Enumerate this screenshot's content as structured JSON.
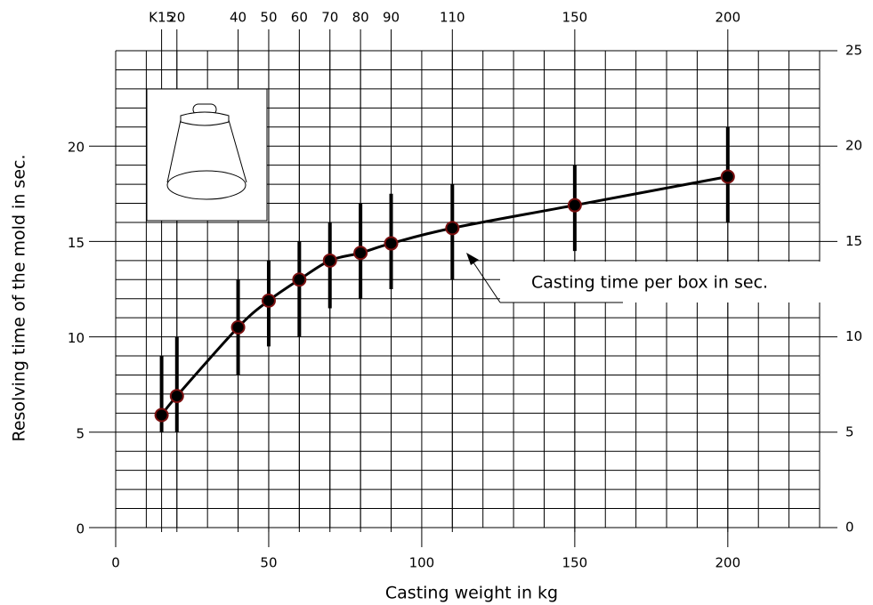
{
  "chart_data": {
    "type": "errorline",
    "xlabel": "Casting weight in kg",
    "ylabel": "Resolving time of the mold in sec.",
    "annotation": "Casting time per box in sec.",
    "xlim": [
      0,
      230
    ],
    "ylim": [
      0,
      25
    ],
    "y2lim": [
      0,
      25
    ],
    "xticks": [
      0,
      50,
      100,
      150,
      200
    ],
    "yticks": [
      0,
      5,
      10,
      15,
      20
    ],
    "y2ticks": [
      0,
      5,
      10,
      15,
      20,
      25
    ],
    "top_ticks": [
      {
        "value": 15,
        "label": "K15"
      },
      20,
      40,
      50,
      60,
      70,
      80,
      90,
      110,
      150,
      200
    ],
    "grid": true,
    "xgrid_step": 10,
    "ygrid_step": 1,
    "color": "#000000",
    "marker_color": "#7a1010",
    "series": [
      {
        "x": [
          15,
          20,
          40,
          50,
          60,
          70,
          80,
          90,
          110,
          150,
          200
        ],
        "values": [
          5.9,
          6.9,
          10.5,
          11.9,
          13.0,
          14.0,
          14.4,
          14.9,
          15.7,
          16.9,
          18.4
        ],
        "low": [
          5,
          5,
          8,
          9.5,
          10,
          11.5,
          12,
          12.5,
          13,
          14.5,
          16
        ],
        "high": [
          9,
          10,
          13,
          14,
          15,
          16,
          17,
          17.5,
          18,
          19,
          21
        ]
      }
    ]
  }
}
